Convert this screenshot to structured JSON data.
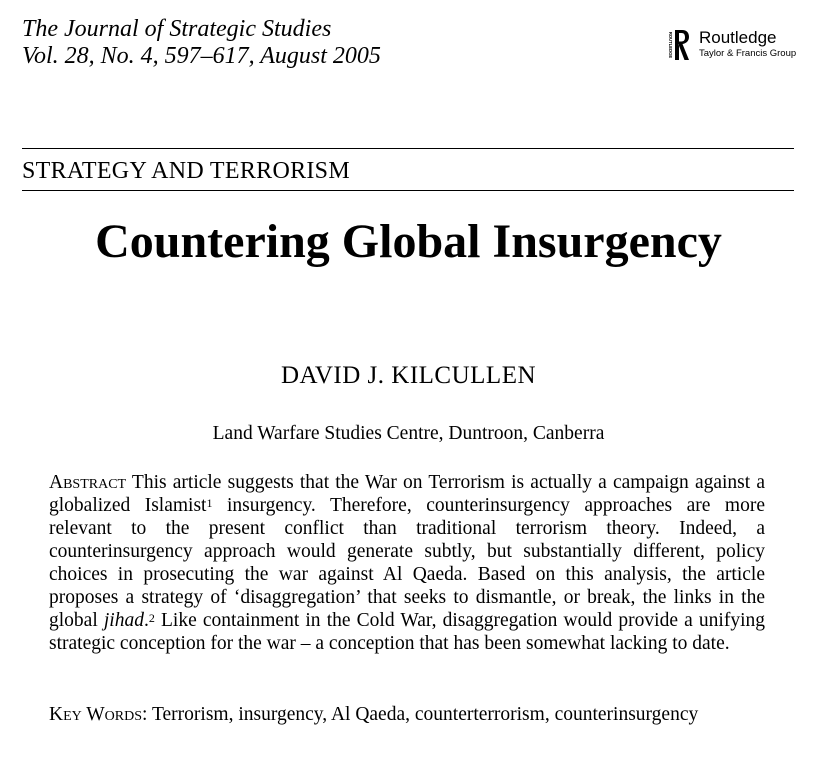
{
  "journal": {
    "name": "The Journal of Strategic Studies",
    "issue": "Vol. 28, No. 4, 597–617, August 2005"
  },
  "publisher": {
    "name": "Routledge",
    "group": "Taylor & Francis Group",
    "vertical_text": "ROUTLEDGE"
  },
  "section_heading": "STRATEGY AND TERRORISM",
  "article": {
    "title": "Countering Global Insurgency",
    "author": "DAVID J. KILCULLEN",
    "affiliation": "Land Warfare Studies Centre, Duntroon, Canberra"
  },
  "abstract": {
    "label": "Abstract",
    "part1": "This article suggests that the War on Terrorism is actually a campaign against a globalized Islamist",
    "note1": "1",
    "part2": " insurgency. Therefore, counterinsurgency approaches are more relevant to the present conflict than traditional terrorism theory. Indeed, a counterinsurgency approach would generate subtly, but substantially different, policy choices in prosecuting the war against Al Qaeda. Based on this analysis, the article proposes a strategy of ‘disaggregation’ that seeks to dismantle, or break, the links in the global ",
    "italic_word": "jihad",
    "part3": ".",
    "note2": "2",
    "part4": " Like containment in the Cold War, disaggregation would provide a unifying strategic conception for the war – a conception that has been somewhat lacking to date."
  },
  "keywords": {
    "label": "Key Words:",
    "text": "Terrorism, insurgency, Al Qaeda, counterterrorism, counterinsurgency"
  }
}
